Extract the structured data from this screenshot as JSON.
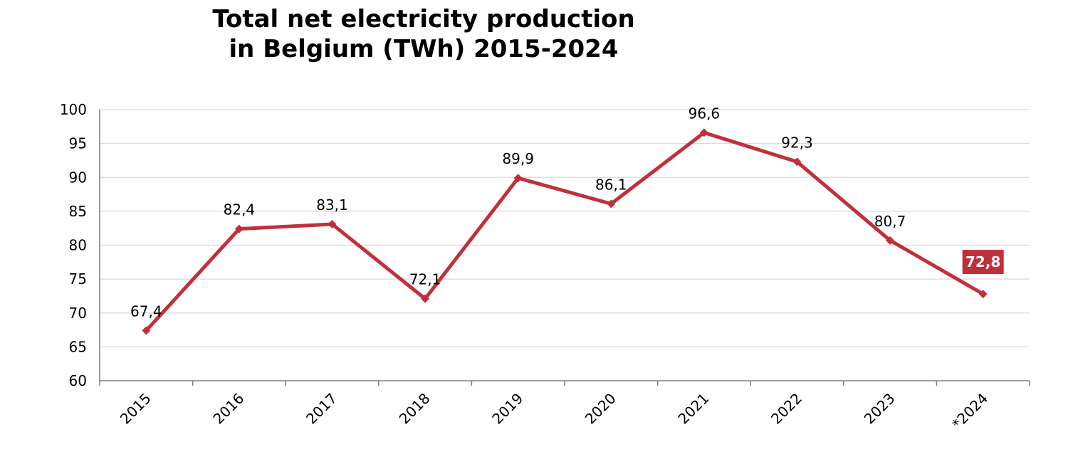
{
  "chart_data": {
    "type": "line",
    "title_lines": [
      "Total net electricity production",
      "in Belgium (TWh) 2015-2024"
    ],
    "categories": [
      "2015",
      "2016",
      "2017",
      "2018",
      "2019",
      "2020",
      "2021",
      "2022",
      "2023",
      "*2024"
    ],
    "series": [
      {
        "values": [
          67.4,
          82.4,
          83.1,
          72.1,
          89.9,
          86.1,
          96.6,
          92.3,
          80.7,
          72.8
        ],
        "data_labels": [
          "67,4",
          "82,4",
          "83,1",
          "72,1",
          "89,9",
          "86,1",
          "96,6",
          "92,3",
          "80,7",
          "72,8"
        ],
        "color": "#c0303a",
        "marker": "diamond"
      }
    ],
    "ylim": [
      60,
      100
    ],
    "yticks": [
      60,
      65,
      70,
      75,
      80,
      85,
      90,
      95,
      100
    ],
    "ytick_labels": [
      "60",
      "65",
      "70",
      "75",
      "80",
      "85",
      "90",
      "95",
      "100"
    ],
    "grid": true,
    "highlight_index": 9,
    "highlight_color": "#c0303a",
    "gridline_color": "#d9d9d9",
    "axis_color": "#808080"
  }
}
